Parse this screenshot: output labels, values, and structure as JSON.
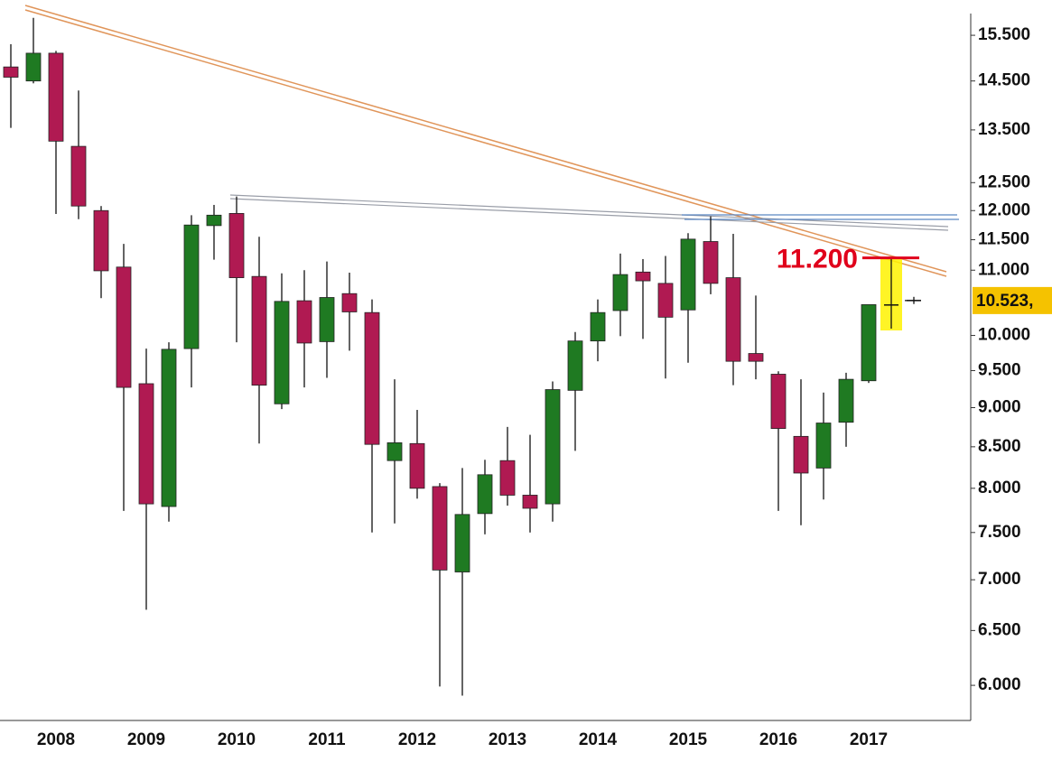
{
  "chart_data": {
    "type": "candlestick",
    "categories": [
      null,
      null,
      "2008",
      null,
      null,
      null,
      "2009",
      null,
      null,
      null,
      "2010",
      null,
      null,
      null,
      "2011",
      null,
      null,
      null,
      "2012",
      null,
      null,
      null,
      "2013",
      null,
      null,
      null,
      "2014",
      null,
      null,
      null,
      "2015",
      null,
      null,
      null,
      "2016",
      null,
      null,
      null,
      "2017",
      null,
      null
    ],
    "open": [
      14800,
      14500,
      15100,
      13180,
      12000,
      11050,
      9320,
      7790,
      9810,
      11740,
      11950,
      10900,
      9050,
      10520,
      9910,
      10630,
      10340,
      8330,
      8540,
      8020,
      7080,
      7710,
      8330,
      7920,
      7820,
      9230,
      9920,
      10370,
      10970,
      10790,
      10380,
      11470,
      10880,
      9740,
      9450,
      8630,
      8240,
      8810,
      9360,
      10460,
      10523
    ],
    "high": [
      15300,
      15900,
      15150,
      14300,
      12080,
      11430,
      9810,
      9900,
      11920,
      12100,
      12250,
      11550,
      10950,
      11000,
      11140,
      10960,
      10540,
      9380,
      8970,
      8060,
      8240,
      8340,
      8750,
      8650,
      9350,
      10050,
      10540,
      11270,
      11180,
      11230,
      11610,
      11900,
      11600,
      10600,
      9490,
      9380,
      9200,
      9470,
      10460,
      11200,
      10580
    ],
    "low": [
      13540,
      14450,
      11940,
      11850,
      10560,
      7740,
      6700,
      7620,
      9270,
      11170,
      9900,
      8540,
      8980,
      9270,
      9400,
      9780,
      7500,
      7600,
      7880,
      5990,
      5910,
      7480,
      7800,
      7500,
      7620,
      8450,
      9630,
      9990,
      9950,
      9390,
      9610,
      10620,
      9300,
      9380,
      7740,
      7580,
      7870,
      8500,
      9330,
      10100,
      10470
    ],
    "close": [
      14580,
      15100,
      13280,
      12080,
      10990,
      9270,
      7820,
      9800,
      11750,
      11920,
      10880,
      9300,
      10510,
      9890,
      10570,
      10350,
      8530,
      8550,
      8000,
      7100,
      7700,
      8160,
      7920,
      7770,
      9240,
      9920,
      10340,
      10930,
      10830,
      10270,
      11510,
      10790,
      9630,
      9630,
      8730,
      8180,
      8800,
      9380,
      10460,
      10450,
      10523
    ],
    "up_color": "#1f7a22",
    "down_color": "#b01a52",
    "log_scale": true,
    "ylim": [
      5700,
      16000
    ],
    "yticks": [
      {
        "value": 6000,
        "label": "6.000"
      },
      {
        "value": 6500,
        "label": "6.500"
      },
      {
        "value": 7000,
        "label": "7.000"
      },
      {
        "value": 7500,
        "label": "7.500"
      },
      {
        "value": 8000,
        "label": "8.000"
      },
      {
        "value": 8500,
        "label": "8.500"
      },
      {
        "value": 9000,
        "label": "9.000"
      },
      {
        "value": 9500,
        "label": "9.500"
      },
      {
        "value": 10000,
        "label": "10.000"
      },
      {
        "value": 11000,
        "label": "11.000"
      },
      {
        "value": 11500,
        "label": "11.500"
      },
      {
        "value": 12000,
        "label": "12.000"
      },
      {
        "value": 12500,
        "label": "12.500"
      },
      {
        "value": 13500,
        "label": "13.500"
      },
      {
        "value": 14500,
        "label": "14.500"
      },
      {
        "value": 15500,
        "label": "15.500"
      }
    ],
    "annotations": [
      {
        "label": "11.200",
        "value": 11200,
        "color": "#e0001b"
      },
      {
        "label": "10.523,",
        "value": 10523,
        "color": "#f5c200"
      }
    ]
  }
}
